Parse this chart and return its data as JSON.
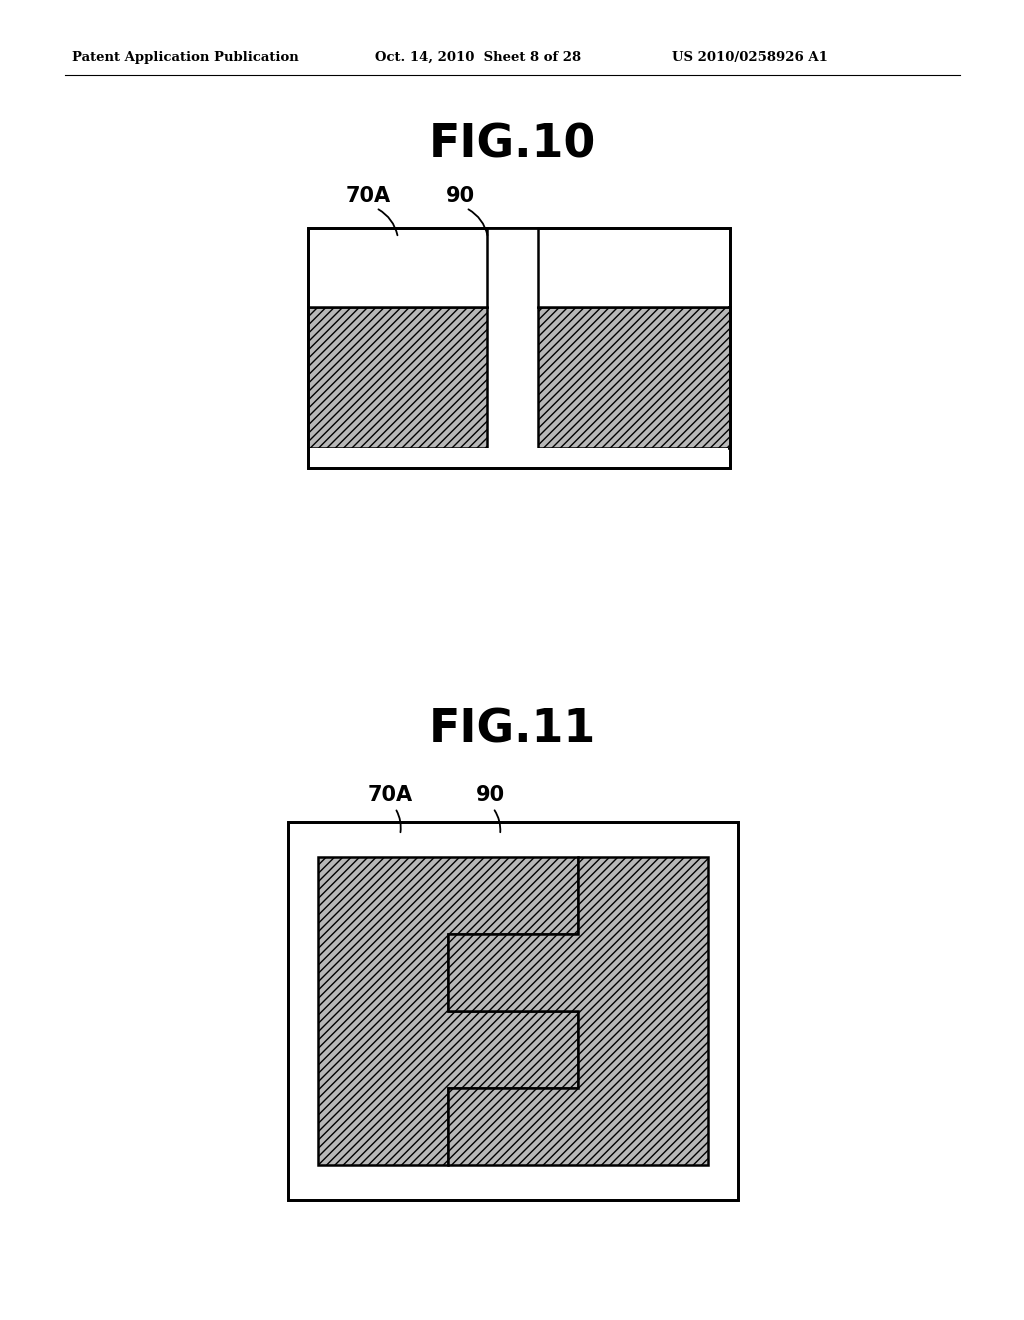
{
  "header_left": "Patent Application Publication",
  "header_mid": "Oct. 14, 2010  Sheet 8 of 28",
  "header_right": "US 2010/0258926 A1",
  "fig10_title": "FIG.10",
  "fig11_title": "FIG.11",
  "label_70A": "70A",
  "label_90": "90",
  "bg_color": "#ffffff",
  "line_color": "#000000",
  "hatch_color": "#888888"
}
